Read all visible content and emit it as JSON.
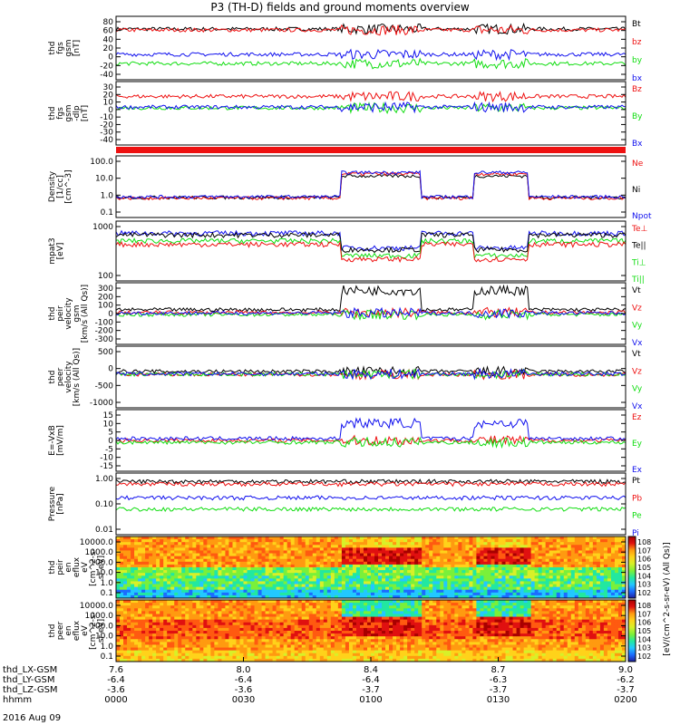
{
  "title": "P3 (TH-D) fields and ground moments overview",
  "date": "2016 Aug 09",
  "colors": {
    "black": "#000000",
    "red": "#ee1111",
    "green": "#11dd11",
    "blue": "#1111ee",
    "axis": "#000000"
  },
  "chart_data": {
    "type": "line",
    "x_ticks": {
      "labels": [
        "thd_LX-GSM",
        "thd_LY-GSM",
        "thd_LZ-GSM",
        "hhmm"
      ],
      "columns": [
        [
          "7.6",
          "-6.4",
          "-3.6",
          "0000"
        ],
        [
          "8.0",
          "-6.4",
          "-3.6",
          "0030"
        ],
        [
          "8.4",
          "-6.4",
          "-3.7",
          "0100"
        ],
        [
          "8.7",
          "-6.3",
          "-3.7",
          "0130"
        ],
        [
          "9.0",
          "-6.2",
          "-3.7",
          "0200"
        ]
      ]
    },
    "panels": [
      {
        "id": "fgs-gsm",
        "ylabel": [
          "thd",
          "fgs",
          "gsm",
          "[nT]"
        ],
        "ticks": [
          "80",
          "60",
          "40",
          "20",
          "0",
          "-20",
          "-40"
        ],
        "legend": [
          {
            "label": "Bt",
            "color": "#000000"
          },
          {
            "label": "bz",
            "color": "#ee1111"
          },
          {
            "label": "by",
            "color": "#11dd11"
          },
          {
            "label": "bx",
            "color": "#1111ee"
          }
        ],
        "series": [
          {
            "color": "#000000",
            "level": 60
          },
          {
            "color": "#ee1111",
            "level": 58
          },
          {
            "color": "#11dd11",
            "level": -8
          },
          {
            "color": "#1111ee",
            "level": 10
          }
        ],
        "ymin": -40,
        "ymax": 85
      },
      {
        "id": "fgs-dsl",
        "ylabel": [
          "thd",
          "fgs",
          "gsm",
          "-dlp",
          "[nT]"
        ],
        "ticks": [
          "30",
          "20",
          "10",
          "0",
          "-10",
          "-20",
          "-30",
          "-40"
        ],
        "legend": [
          {
            "label": "Bz",
            "color": "#ee1111"
          },
          {
            "label": "By",
            "color": "#11dd11"
          },
          {
            "label": "Bx",
            "color": "#1111ee"
          }
        ],
        "series": [
          {
            "color": "#ee1111",
            "level": 14
          },
          {
            "color": "#11dd11",
            "level": 0
          },
          {
            "color": "#1111ee",
            "level": 1
          }
        ],
        "ymin": -45,
        "ymax": 32
      },
      {
        "id": "density",
        "ylabel": [
          "Density",
          "[1/cc]",
          "[cm^-3]"
        ],
        "ticks": [
          "100.0",
          "10.0",
          "1.0",
          "0.1"
        ],
        "log": true,
        "legend": [
          {
            "label": "Ne",
            "color": "#ee1111"
          },
          {
            "label": "Ni",
            "color": "#000000"
          },
          {
            "label": "Npot",
            "color": "#1111ee"
          }
        ],
        "series": [
          {
            "color": "#000000",
            "level": 1.2
          },
          {
            "color": "#ee1111",
            "level": 1.1
          },
          {
            "color": "#1111ee",
            "level": 1.3
          }
        ],
        "ymin": 0.1,
        "ymax": 200
      },
      {
        "id": "temperature",
        "ylabel": [
          "mpat3",
          "[eV]"
        ],
        "ticks": [
          "1000",
          "100"
        ],
        "log": true,
        "legend": [
          {
            "label": "Te⊥",
            "color": "#ee1111"
          },
          {
            "label": "Te||",
            "color": "#000000"
          },
          {
            "label": "Ti⊥",
            "color": "#11dd11"
          },
          {
            "label": "Ti||",
            "color": "#11dd11"
          }
        ],
        "series": [
          {
            "color": "#1111ee",
            "level": 1500
          },
          {
            "color": "#000000",
            "level": 1300
          },
          {
            "color": "#11dd11",
            "level": 800
          },
          {
            "color": "#ee1111",
            "level": 600
          }
        ],
        "ymin": 30,
        "ymax": 4000
      },
      {
        "id": "peir-velocity",
        "ylabel": [
          "thd",
          "peir",
          "velocity",
          "gsm",
          "[km/s (All Qs)]"
        ],
        "ticks": [
          "300",
          "200",
          "100",
          "0",
          "-100",
          "-200",
          "-300"
        ],
        "legend": [
          {
            "label": "Vt",
            "color": "#000000"
          },
          {
            "label": "Vz",
            "color": "#ee1111"
          },
          {
            "label": "Vy",
            "color": "#11dd11"
          },
          {
            "label": "Vx",
            "color": "#1111ee"
          }
        ],
        "series": [
          {
            "color": "#000000",
            "level": 40
          },
          {
            "color": "#ee1111",
            "level": 10
          },
          {
            "color": "#11dd11",
            "level": -10
          },
          {
            "color": "#1111ee",
            "level": 5
          }
        ],
        "ymin": -320,
        "ymax": 320
      },
      {
        "id": "peer-velocity",
        "ylabel": [
          "thd",
          "peer",
          "velocity",
          "[km/s (All Qs)]"
        ],
        "ticks": [
          "500",
          "0",
          "-500",
          "-1000"
        ],
        "legend": [
          {
            "label": "Vt",
            "color": "#000000"
          },
          {
            "label": "Vz",
            "color": "#ee1111"
          },
          {
            "label": "Vy",
            "color": "#11dd11"
          },
          {
            "label": "Vx",
            "color": "#1111ee"
          }
        ],
        "series": [
          {
            "color": "#000000",
            "level": 80
          },
          {
            "color": "#ee1111",
            "level": -20
          },
          {
            "color": "#11dd11",
            "level": -10
          },
          {
            "color": "#1111ee",
            "level": 0
          }
        ],
        "ymin": -1100,
        "ymax": 900
      },
      {
        "id": "efield",
        "ylabel": [
          "E=-VxB",
          "[mV/m]"
        ],
        "ticks": [
          "15",
          "10",
          "5",
          "0",
          "-5",
          "-10",
          "-15"
        ],
        "legend": [
          {
            "label": "Ez",
            "color": "#ee1111"
          },
          {
            "label": "Ey",
            "color": "#11dd11"
          },
          {
            "label": "Ex",
            "color": "#1111ee"
          }
        ],
        "series": [
          {
            "color": "#ee1111",
            "level": 0
          },
          {
            "color": "#11dd11",
            "level": -1
          },
          {
            "color": "#1111ee",
            "level": 1
          }
        ],
        "ymin": -16,
        "ymax": 16
      },
      {
        "id": "pressure",
        "ylabel": [
          "Pressure",
          "[nPa]"
        ],
        "ticks": [
          "1.00",
          "0.10",
          "0.01"
        ],
        "log": true,
        "legend": [
          {
            "label": "Pt",
            "color": "#000000"
          },
          {
            "label": "Pb",
            "color": "#ee1111"
          },
          {
            "label": "Pe",
            "color": "#11dd11"
          },
          {
            "label": "Pi",
            "color": "#1111ee"
          }
        ],
        "series": [
          {
            "color": "#000000",
            "level": 1.3
          },
          {
            "color": "#ee1111",
            "level": 1.0
          },
          {
            "color": "#1111ee",
            "level": 0.25
          },
          {
            "color": "#11dd11",
            "level": 0.08
          }
        ],
        "ymin": 0.006,
        "ymax": 3
      },
      {
        "id": "peir-spec",
        "type": "heatmap",
        "ylabel": [
          "thd",
          "peir",
          "en",
          "eflux",
          "eV",
          "[cm^2-s-",
          "sr-eV]"
        ],
        "ticks": [
          "10000.0",
          "1000.0",
          "100.0",
          "10.0",
          "1.0",
          "0.1"
        ]
      },
      {
        "id": "peer-spec",
        "type": "heatmap",
        "ylabel": [
          "thd",
          "peer",
          "en",
          "eflux",
          "eV",
          "[cm^2-s-",
          "sr-eV]"
        ],
        "ticks": [
          "10000.0",
          "1000.0",
          "100.0",
          "10.0",
          "1.0",
          "0.1"
        ]
      }
    ],
    "colorbar": {
      "label": "[eV/(cm^2-s-sr-eV) (All Qs)]",
      "ticks_top": [
        "10^8",
        "10^7",
        "10^6",
        "10^5",
        "10^4",
        "10^3",
        "10^2"
      ],
      "ticks_bottom": [
        "10^8",
        "10^7",
        "10^6",
        "10^5",
        "10^4",
        "10^3",
        "10^2"
      ]
    }
  }
}
